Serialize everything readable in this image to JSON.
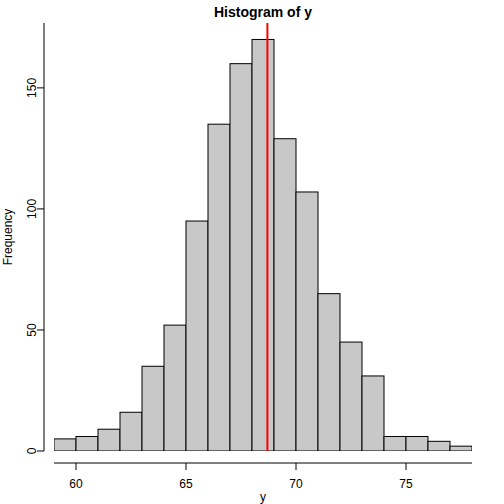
{
  "chart_data": {
    "type": "histogram",
    "title": "Histogram of y",
    "x_label": "y",
    "y_label": "Frequency",
    "bins": [
      59,
      60,
      61,
      62,
      63,
      64,
      65,
      66,
      67,
      68,
      69,
      70,
      71,
      72,
      73,
      74,
      75,
      76,
      77,
      78
    ],
    "values": [
      5,
      6,
      9,
      16,
      35,
      52,
      95,
      135,
      160,
      170,
      129,
      107,
      65,
      45,
      31,
      6,
      6,
      4,
      2
    ],
    "color": "#c8c8c8",
    "xlim": [
      59,
      78
    ],
    "xticks": [
      60,
      65,
      70,
      75
    ],
    "ylim": [
      0,
      176.8
    ],
    "yticks": [
      0,
      50,
      100,
      150
    ],
    "vline": {
      "value": 68.7,
      "color": "red"
    }
  }
}
